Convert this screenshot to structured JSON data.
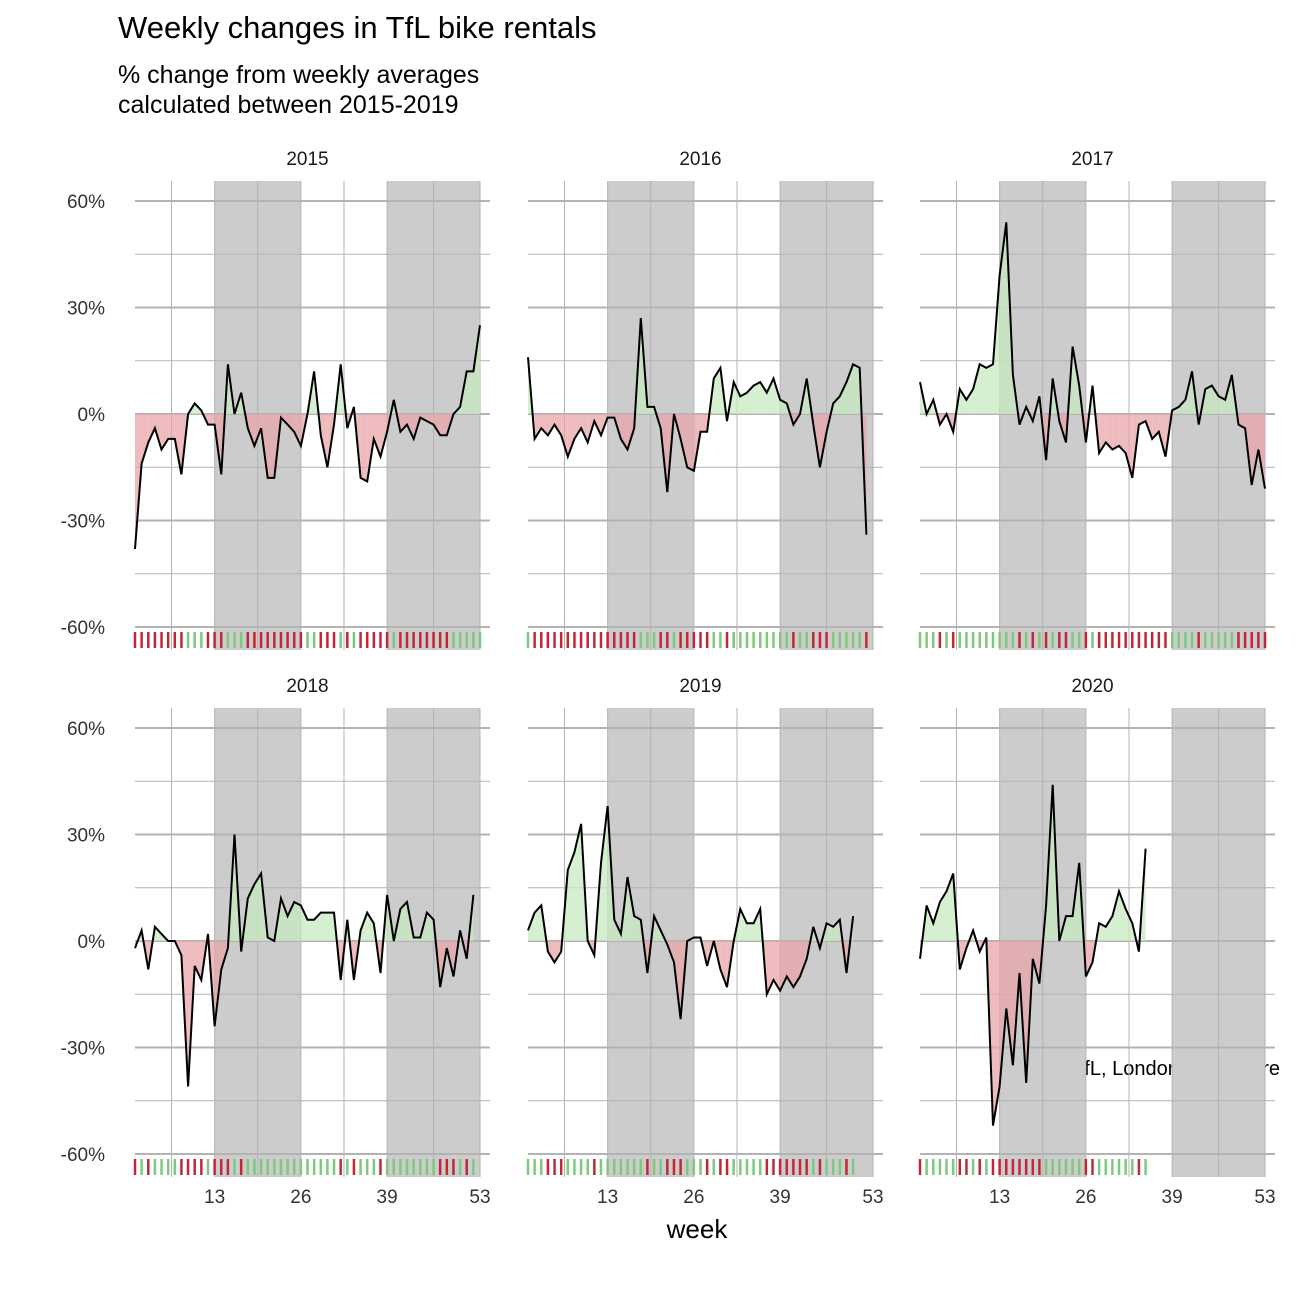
{
  "title": "Weekly changes in TfL bike rentals",
  "subtitle_line1": "% change from weekly averages",
  "subtitle_line2": "calculated between 2015-2019",
  "caption": "Source: TfL, London Data Store",
  "colors": {
    "positive": "#7fc97f",
    "negative": "#c0283a",
    "positive_fill": "#c7e9c0",
    "negative_fill": "#e8a5a8",
    "shade": "#cccccc",
    "grid": "#b3b3b3"
  },
  "chart_data": {
    "type": "area",
    "xlabel": "week",
    "ylabel": "",
    "x_ticks": [
      13,
      26,
      39,
      53
    ],
    "y_ticks": [
      -60,
      -30,
      0,
      30,
      60
    ],
    "y_tick_labels": [
      "-60%",
      "-30%",
      "0%",
      "30%",
      "60%"
    ],
    "xlim": [
      1,
      53
    ],
    "ylim": [
      -60,
      60
    ],
    "shaded_week_ranges": [
      [
        13,
        26
      ],
      [
        39,
        53
      ]
    ],
    "panels": [
      {
        "year": "2015",
        "values": [
          -38,
          -14,
          -8,
          -4,
          -10,
          -7,
          -7,
          -17,
          0,
          3,
          1,
          -3,
          -3,
          -17,
          14,
          0,
          6,
          -4,
          -9,
          -4,
          -18,
          -18,
          -1,
          -3,
          -5,
          -9,
          0,
          12,
          -6,
          -15,
          -3,
          14,
          -4,
          2,
          -18,
          -19,
          -7,
          -12,
          -5,
          4,
          -5,
          -3,
          -7,
          -1,
          -2,
          -3,
          -6,
          -6,
          0,
          2,
          12,
          12,
          25
        ]
      },
      {
        "year": "2016",
        "values": [
          16,
          -7,
          -4,
          -6,
          -3,
          -6,
          -12,
          -7,
          -4,
          -8,
          -2,
          -6,
          -1,
          -1,
          -7,
          -10,
          -4,
          27,
          2,
          2,
          -4,
          -22,
          0,
          -7,
          -15,
          -16,
          -5,
          -5,
          10,
          13,
          -2,
          9,
          5,
          6,
          8,
          9,
          6,
          10,
          4,
          3,
          -3,
          0,
          10,
          -3,
          -15,
          -5,
          3,
          5,
          9,
          14,
          13,
          -34
        ]
      },
      {
        "year": "2017",
        "values": [
          9,
          0,
          4,
          -3,
          0,
          -5,
          7,
          4,
          7,
          14,
          13,
          14,
          39,
          54,
          11,
          -3,
          2,
          -2,
          5,
          -13,
          10,
          -2,
          -8,
          19,
          8,
          -8,
          8,
          -11,
          -8,
          -10,
          -9,
          -11,
          -18,
          -3,
          -2,
          -7,
          -5,
          -12,
          1,
          2,
          4,
          12,
          -3,
          7,
          8,
          5,
          4,
          11,
          -3,
          -4,
          -20,
          -10,
          -21
        ]
      },
      {
        "year": "2018",
        "values": [
          -2,
          3,
          -8,
          4,
          2,
          0,
          0,
          -4,
          -41,
          -7,
          -11,
          2,
          -24,
          -8,
          -2,
          30,
          -3,
          12,
          16,
          19,
          1,
          0,
          12,
          7,
          11,
          10,
          6,
          6,
          8,
          8,
          8,
          -11,
          6,
          -11,
          3,
          8,
          5,
          -9,
          13,
          0,
          9,
          11,
          1,
          1,
          8,
          6,
          -13,
          -2,
          -10,
          3,
          -5,
          13
        ]
      },
      {
        "year": "2019",
        "values": [
          3,
          8,
          10,
          -3,
          -6,
          -3,
          20,
          25,
          33,
          0,
          -4,
          22,
          38,
          6,
          2,
          18,
          7,
          6,
          -9,
          7,
          3,
          -1,
          -6,
          -22,
          0,
          1,
          1,
          -7,
          0,
          -8,
          -13,
          0,
          9,
          5,
          5,
          9,
          -15,
          -11,
          -14,
          -10,
          -13,
          -10,
          -5,
          4,
          -2,
          5,
          4,
          6,
          -9,
          7
        ]
      },
      {
        "year": "2020",
        "values": [
          -5,
          10,
          5,
          11,
          14,
          19,
          -8,
          -2,
          3,
          -3,
          1,
          -52,
          -41,
          -19,
          -35,
          -9,
          -40,
          -5,
          -12,
          10,
          44,
          0,
          7,
          7,
          22,
          -10,
          -6,
          5,
          4,
          7,
          14,
          9,
          5,
          -3,
          26
        ]
      }
    ]
  }
}
